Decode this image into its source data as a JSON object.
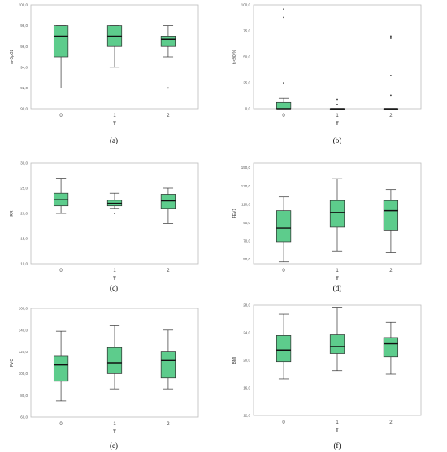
{
  "chart_data": [
    {
      "type": "box",
      "panel_label": "(a)",
      "ylabel": "m-SpO2",
      "xlabel": "T",
      "categories": [
        "0",
        "1",
        "2"
      ],
      "yticks": [
        "90,0",
        "92,0",
        "94,0",
        "96,0",
        "98,0",
        "100,0"
      ],
      "ylim": [
        90,
        100
      ],
      "boxes": [
        {
          "min": 92.0,
          "q1": 95.0,
          "median": 97.0,
          "q3": 98.0,
          "max": 98.0,
          "outliers": []
        },
        {
          "min": 94.0,
          "q1": 96.0,
          "median": 97.0,
          "q3": 98.0,
          "max": 98.0,
          "outliers": []
        },
        {
          "min": 95.0,
          "q1": 96.0,
          "median": 96.7,
          "q3": 97.0,
          "max": 98.0,
          "outliers": [
            92.0
          ]
        }
      ]
    },
    {
      "type": "box",
      "panel_label": "(b)",
      "ylabel": "t(<90)%",
      "xlabel": "T",
      "categories": [
        "0",
        "1",
        "2"
      ],
      "yticks": [
        "0,0",
        "25,0",
        "50,0",
        "75,0",
        "100,0"
      ],
      "ylim": [
        0,
        100
      ],
      "boxes": [
        {
          "min": 0.0,
          "q1": 0.0,
          "median": 0.0,
          "q3": 6.0,
          "max": 10.0,
          "outliers": [
            24.0,
            25.0,
            88.0,
            96.0
          ]
        },
        {
          "min": 0.0,
          "q1": 0.0,
          "median": 0.0,
          "q3": 0.0,
          "max": 0.0,
          "outliers": [
            4.0,
            9.0
          ]
        },
        {
          "min": 0.0,
          "q1": 0.0,
          "median": 0.0,
          "q3": 0.0,
          "max": 0.0,
          "outliers": [
            13.0,
            32.0,
            68.0,
            70.0
          ]
        }
      ]
    },
    {
      "type": "box",
      "panel_label": "(c)",
      "ylabel": "RR",
      "xlabel": "T",
      "categories": [
        "0",
        "1",
        "2"
      ],
      "yticks": [
        "10,0",
        "15,0",
        "20,0",
        "25,0",
        "30,0"
      ],
      "ylim": [
        10,
        30
      ],
      "boxes": [
        {
          "min": 20.0,
          "q1": 21.5,
          "median": 22.7,
          "q3": 24.0,
          "max": 27.0,
          "outliers": []
        },
        {
          "min": 21.0,
          "q1": 21.5,
          "median": 22.0,
          "q3": 22.6,
          "max": 24.0,
          "outliers": [
            20.0
          ]
        },
        {
          "min": 18.0,
          "q1": 21.0,
          "median": 22.5,
          "q3": 23.8,
          "max": 25.0,
          "outliers": []
        }
      ]
    },
    {
      "type": "box",
      "panel_label": "(d)",
      "ylabel": "FEV1",
      "xlabel": "T",
      "categories": [
        "0",
        "1",
        "2"
      ],
      "yticks": [
        "50,0",
        "70,0",
        "90,0",
        "110,0",
        "130,0",
        "150,0"
      ],
      "ylim": [
        45,
        155
      ],
      "boxes": [
        {
          "min": 47.0,
          "q1": 69.0,
          "median": 84.0,
          "q3": 103.0,
          "max": 118.0,
          "outliers": []
        },
        {
          "min": 59.0,
          "q1": 85.0,
          "median": 101.0,
          "q3": 114.0,
          "max": 138.0,
          "outliers": []
        },
        {
          "min": 57.0,
          "q1": 81.0,
          "median": 103.0,
          "q3": 114.0,
          "max": 126.0,
          "outliers": []
        }
      ]
    },
    {
      "type": "box",
      "panel_label": "(e)",
      "ylabel": "FVC",
      "xlabel": "T",
      "categories": [
        "0",
        "1",
        "2"
      ],
      "yticks": [
        "60,0",
        "80,0",
        "100,0",
        "120,0",
        "140,0",
        "160,0"
      ],
      "ylim": [
        60,
        160
      ],
      "boxes": [
        {
          "min": 75.0,
          "q1": 93.0,
          "median": 108.0,
          "q3": 116.0,
          "max": 139.0,
          "outliers": []
        },
        {
          "min": 86.0,
          "q1": 100.0,
          "median": 110.0,
          "q3": 124.0,
          "max": 144.0,
          "outliers": []
        },
        {
          "min": 86.0,
          "q1": 96.0,
          "median": 112.0,
          "q3": 120.0,
          "max": 140.0,
          "outliers": []
        }
      ]
    },
    {
      "type": "box",
      "panel_label": "(f)",
      "ylabel": "BMI",
      "xlabel": "T",
      "categories": [
        "0",
        "1",
        "2"
      ],
      "yticks": [
        "12,0",
        "16,0",
        "20,0",
        "24,0",
        "28,0"
      ],
      "ylim": [
        12,
        28
      ],
      "boxes": [
        {
          "min": 17.3,
          "q1": 19.8,
          "median": 21.5,
          "q3": 23.6,
          "max": 26.7,
          "outliers": []
        },
        {
          "min": 18.5,
          "q1": 21.0,
          "median": 22.0,
          "q3": 23.7,
          "max": 27.7,
          "outliers": []
        },
        {
          "min": 18.0,
          "q1": 20.5,
          "median": 22.4,
          "q3": 23.3,
          "max": 25.5,
          "outliers": []
        }
      ]
    }
  ]
}
